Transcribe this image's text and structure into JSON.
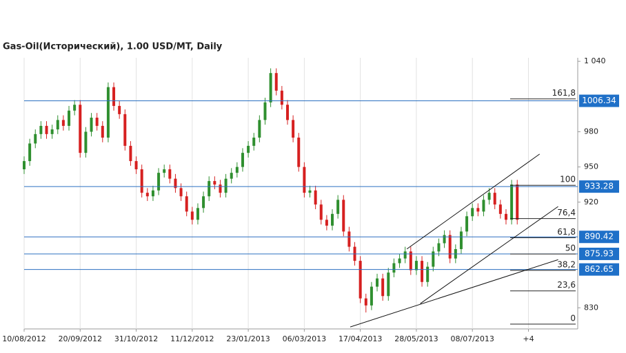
{
  "chart_data": {
    "type": "candlestick",
    "title": "Gas-Oil(Исторический), 1.00 USD/MT, Daily",
    "xlim": [
      0,
      98.8
    ],
    "xticks": [
      {
        "value": 0,
        "label": "10/08/2012"
      },
      {
        "value": 10,
        "label": "20/09/2012"
      },
      {
        "value": 20,
        "label": "31/10/2012"
      },
      {
        "value": 30,
        "label": "11/12/2012"
      },
      {
        "value": 40,
        "label": "23/01/2013"
      },
      {
        "value": 50,
        "label": "06/03/2013"
      },
      {
        "value": 60,
        "label": "17/04/2013"
      },
      {
        "value": 70,
        "label": "28/05/2013"
      },
      {
        "value": 80,
        "label": "08/07/2013"
      },
      {
        "value": 90,
        "label": "+4"
      }
    ],
    "ylim": [
      812,
      1043
    ],
    "yticks": [
      {
        "value": 1040,
        "label": "1 040"
      },
      980,
      950,
      920,
      830
    ],
    "grid": true,
    "up_color": "#2f8f2f",
    "down_color": "#d62020",
    "series": [
      {
        "ohlc": [
          [
            948,
            959,
            944,
            955
          ],
          [
            955,
            974,
            951,
            970
          ],
          [
            970,
            982,
            966,
            978
          ],
          [
            978,
            989,
            974,
            985
          ],
          [
            985,
            989,
            974,
            978
          ],
          [
            978,
            986,
            974,
            982
          ],
          [
            982,
            994,
            978,
            990
          ],
          [
            990,
            994,
            981,
            985
          ],
          [
            985,
            1002,
            981,
            998
          ],
          [
            998,
            1007,
            994,
            1003
          ],
          [
            1003,
            1007,
            958,
            962
          ],
          [
            962,
            984,
            958,
            980
          ],
          [
            980,
            996,
            976,
            992
          ],
          [
            992,
            996,
            981,
            985
          ],
          [
            985,
            989,
            971,
            975
          ],
          [
            975,
            1022,
            971,
            1018
          ],
          [
            1018,
            1022,
            998,
            1002
          ],
          [
            1002,
            1006,
            991,
            995
          ],
          [
            995,
            999,
            964,
            968
          ],
          [
            968,
            972,
            951,
            955
          ],
          [
            955,
            959,
            944,
            948
          ],
          [
            948,
            952,
            924,
            928
          ],
          [
            928,
            932,
            921,
            925
          ],
          [
            925,
            934,
            921,
            930
          ],
          [
            930,
            949,
            926,
            945
          ],
          [
            945,
            952,
            941,
            948
          ],
          [
            948,
            952,
            936,
            940
          ],
          [
            940,
            944,
            928,
            932
          ],
          [
            932,
            936,
            921,
            925
          ],
          [
            925,
            929,
            908,
            912
          ],
          [
            912,
            916,
            901,
            905
          ],
          [
            905,
            919,
            901,
            915
          ],
          [
            915,
            929,
            911,
            925
          ],
          [
            925,
            942,
            921,
            938
          ],
          [
            938,
            942,
            931,
            935
          ],
          [
            935,
            939,
            924,
            928
          ],
          [
            928,
            944,
            924,
            940
          ],
          [
            940,
            949,
            936,
            945
          ],
          [
            945,
            954,
            941,
            950
          ],
          [
            950,
            966,
            946,
            962
          ],
          [
            962,
            972,
            958,
            968
          ],
          [
            968,
            979,
            964,
            975
          ],
          [
            975,
            994,
            971,
            990
          ],
          [
            990,
            1009,
            986,
            1005
          ],
          [
            1005,
            1034,
            1001,
            1030
          ],
          [
            1030,
            1034,
            1011,
            1015
          ],
          [
            1015,
            1019,
            999,
            1003
          ],
          [
            1003,
            1007,
            986,
            990
          ],
          [
            990,
            994,
            971,
            975
          ],
          [
            975,
            979,
            946,
            950
          ],
          [
            950,
            954,
            924,
            928
          ],
          [
            928,
            934,
            924,
            930
          ],
          [
            930,
            934,
            914,
            918
          ],
          [
            918,
            922,
            901,
            905
          ],
          [
            905,
            909,
            896,
            900
          ],
          [
            900,
            914,
            896,
            910
          ],
          [
            910,
            926,
            906,
            922
          ],
          [
            922,
            926,
            891,
            895
          ],
          [
            895,
            899,
            878,
            882
          ],
          [
            882,
            886,
            866,
            870
          ],
          [
            870,
            874,
            834,
            838
          ],
          [
            838,
            842,
            826,
            832
          ],
          [
            832,
            852,
            828,
            848
          ],
          [
            848,
            859,
            844,
            855
          ],
          [
            855,
            859,
            836,
            840
          ],
          [
            840,
            864,
            836,
            860
          ],
          [
            860,
            872,
            856,
            868
          ],
          [
            868,
            876,
            864,
            872
          ],
          [
            872,
            882,
            868,
            878
          ],
          [
            878,
            882,
            858,
            862
          ],
          [
            862,
            874,
            858,
            870
          ],
          [
            870,
            874,
            848,
            852
          ],
          [
            852,
            869,
            848,
            865
          ],
          [
            865,
            882,
            861,
            878
          ],
          [
            878,
            889,
            874,
            885
          ],
          [
            885,
            896,
            881,
            892
          ],
          [
            892,
            896,
            868,
            872
          ],
          [
            872,
            884,
            868,
            880
          ],
          [
            880,
            899,
            876,
            895
          ],
          [
            895,
            912,
            891,
            908
          ],
          [
            908,
            919,
            904,
            915
          ],
          [
            915,
            919,
            908,
            912
          ],
          [
            912,
            926,
            908,
            922
          ],
          [
            922,
            932,
            918,
            928
          ],
          [
            928,
            932,
            914,
            918
          ],
          [
            918,
            922,
            906,
            910
          ],
          [
            910,
            914,
            901,
            905
          ],
          [
            905,
            939,
            901,
            935
          ],
          [
            935,
            939,
            901,
            905
          ]
        ]
      }
    ],
    "price_levels": [
      1006.34,
      933.28,
      890.42,
      875.93,
      862.65
    ],
    "fibonacci": [
      {
        "value": 1008.0,
        "label": "161,8"
      },
      {
        "value": 934.4,
        "label": "100"
      },
      {
        "value": 906.0,
        "label": "76,4"
      },
      {
        "value": 889.7,
        "label": "61,8"
      },
      {
        "value": 875.8,
        "label": "50"
      },
      {
        "value": 861.9,
        "label": "38,2"
      },
      {
        "value": 844.4,
        "label": "23,6"
      },
      {
        "value": 816.1,
        "label": "0"
      }
    ],
    "trendlines": [
      {
        "x": [
          68.3,
          92.0
        ],
        "y": [
          880.1,
          961.0
        ]
      },
      {
        "x": [
          70.7,
          95.3
        ],
        "y": [
          833.6,
          916.3
        ]
      },
      {
        "x": [
          58.2,
          95.3
        ],
        "y": [
          813.7,
          871.0
        ]
      }
    ]
  }
}
